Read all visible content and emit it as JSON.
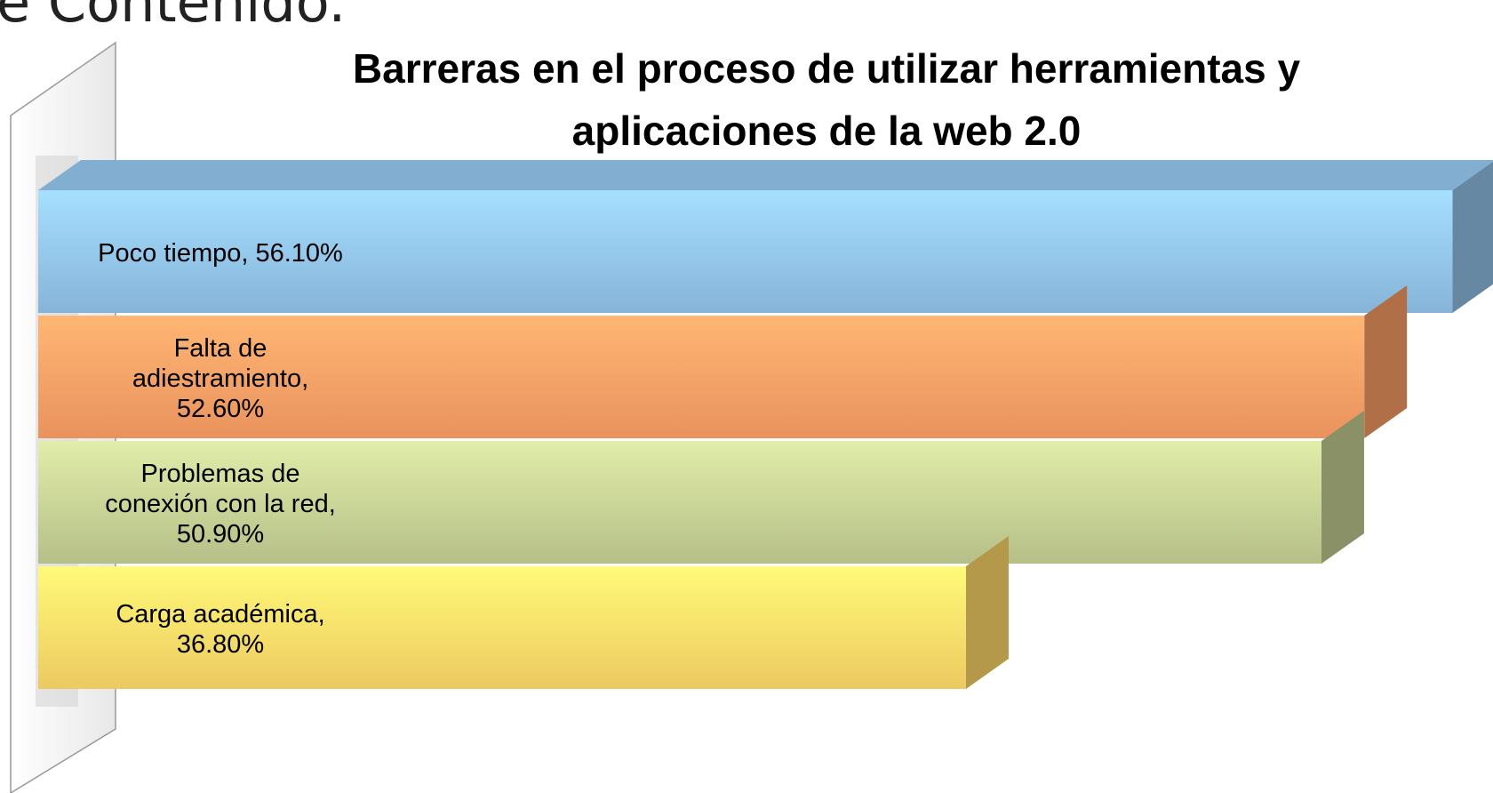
{
  "slide_title": "e Contenido.",
  "chart_data": {
    "type": "bar3d",
    "orientation": "horizontal",
    "title": "Barreras en el proceso de utilizar herramientas y\naplicaciones de la web 2.0",
    "values": [
      56.1,
      52.6,
      50.9,
      36.8
    ],
    "value_labels": [
      "Poco tiempo, 56.10%",
      "Falta de\nadiestramiento,\n52.60%",
      "Problemas de\nconexión con la red,\n50.90%",
      "Carga académica,\n36.80%"
    ],
    "colors": [
      "#8dbde3",
      "#f59a62",
      "#bfc98f",
      "#f9d466"
    ],
    "xlim": [
      0,
      57
    ]
  }
}
